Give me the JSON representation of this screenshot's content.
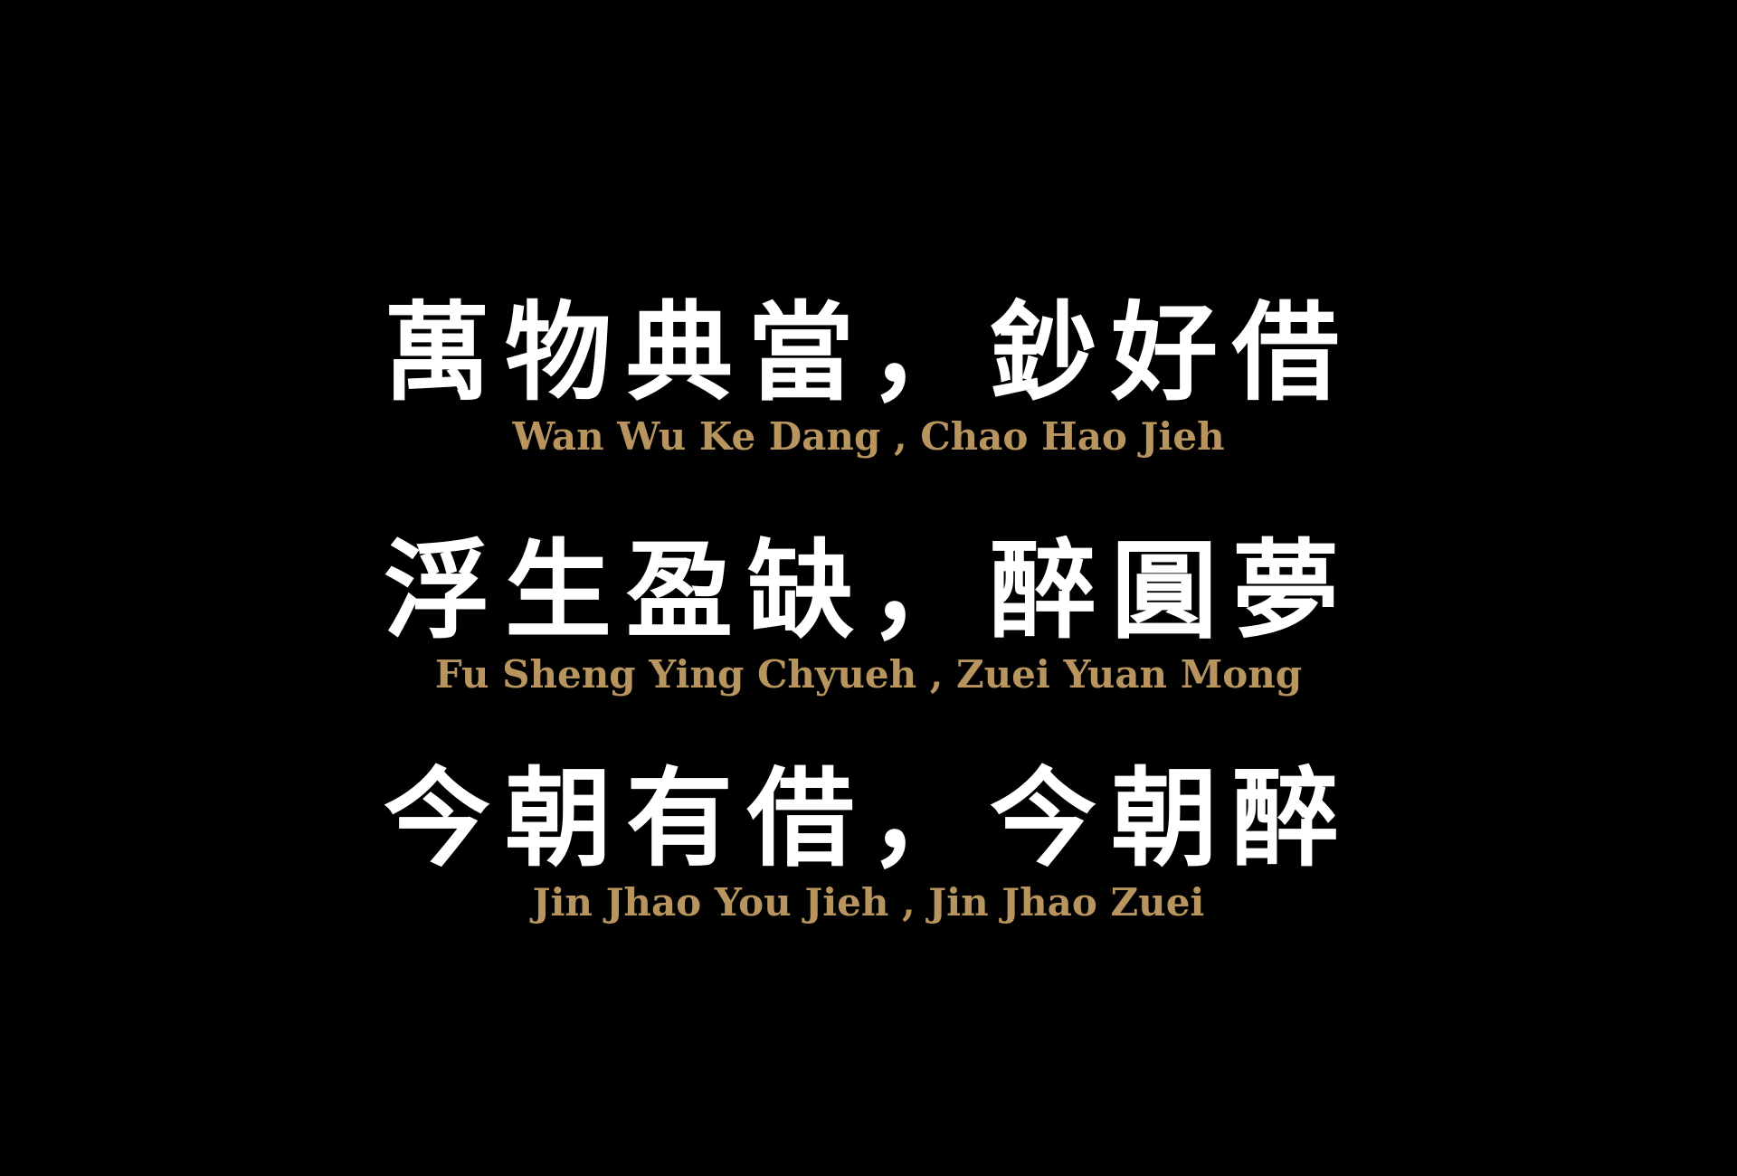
{
  "colors": {
    "background": "#000000",
    "chinese_text": "#ffffff",
    "romanization_text": "#b8955e"
  },
  "lines": [
    {
      "chinese": "萬物典當，鈔好借",
      "romanization": "Wan Wu Ke Dang , Chao Hao Jieh"
    },
    {
      "chinese": "浮生盈缺，醉圓夢",
      "romanization": "Fu Sheng Ying Chyueh , Zuei Yuan Mong"
    },
    {
      "chinese": "今朝有借，今朝醉",
      "romanization": "Jin Jhao You Jieh , Jin Jhao Zuei"
    }
  ]
}
